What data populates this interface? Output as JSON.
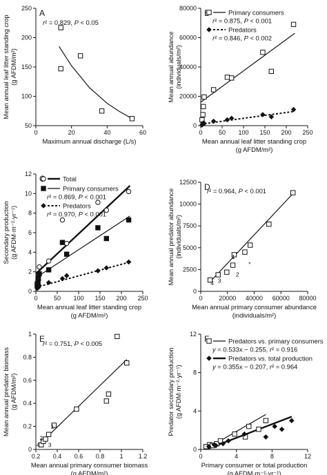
{
  "chart_data": [
    {
      "panel": "A",
      "type": "scatter",
      "xlabel": "Maximum annual discharge (L/s)",
      "ylabel": [
        "Mean annual leaf litter standing crop",
        "(g AFDM/m²)"
      ],
      "xlim": [
        0,
        60
      ],
      "ylim": [
        50,
        250
      ],
      "xticks": [
        0,
        20,
        40,
        60
      ],
      "yticks": [
        50,
        100,
        150,
        200,
        250
      ],
      "annotations": [
        {
          "text": "r² = 0.829, P < 0.05"
        }
      ],
      "series": [
        {
          "marker": "open-square",
          "points": [
            [
              14,
              217
            ],
            [
              14,
              147
            ],
            [
              25,
              169
            ],
            [
              37,
              75
            ],
            [
              54,
              62
            ]
          ],
          "fit": {
            "kind": "curve",
            "points": [
              [
                13,
                185
              ],
              [
                20,
                152
              ],
              [
                30,
                115
              ],
              [
                40,
                88
              ],
              [
                47,
                74
              ],
              [
                54,
                62
              ]
            ]
          }
        }
      ],
      "labels": []
    },
    {
      "panel": "B",
      "type": "scatter",
      "xlabel": "Mean annual leaf litter standing crop",
      "xlabel2": "(g AFDM/m²)",
      "ylabel": [
        "Mean annual abundance",
        "(individuals/m²)"
      ],
      "xlim": [
        0,
        250
      ],
      "ylim": [
        0,
        80000
      ],
      "xticks": [
        0,
        50,
        100,
        150,
        200,
        250
      ],
      "yticks": [
        0,
        20000,
        40000,
        60000,
        80000
      ],
      "legend": [
        {
          "marker": "open-square",
          "line": "solid",
          "label": "Primary consumers",
          "stat": "r² = 0.875, P < 0.001"
        },
        {
          "marker": "filled-diamond",
          "line": "dotted",
          "label": "Predators",
          "stat": "r² = 0.846, P < 0.002"
        }
      ],
      "annotations": [],
      "series": [
        {
          "marker": "open-square",
          "points": [
            [
              3,
              4000
            ],
            [
              5,
              7500
            ],
            [
              6,
              13000
            ],
            [
              8,
              19500
            ],
            [
              30,
              24500
            ],
            [
              62,
              33000
            ],
            [
              72,
              32500
            ],
            [
              145,
              50000
            ],
            [
              165,
              37000
            ],
            [
              217,
              69000
            ]
          ],
          "fit": {
            "kind": "line",
            "line": "solid",
            "points": [
              [
                0,
                16000
              ],
              [
                220,
                63000
              ]
            ]
          }
        },
        {
          "marker": "filled-diamond",
          "points": [
            [
              3,
              500
            ],
            [
              5,
              1200
            ],
            [
              6,
              1800
            ],
            [
              8,
              1500
            ],
            [
              30,
              3000
            ],
            [
              62,
              4000
            ],
            [
              72,
              5000
            ],
            [
              145,
              7500
            ],
            [
              165,
              6000
            ],
            [
              217,
              11000
            ]
          ],
          "fit": {
            "kind": "line",
            "line": "dotted",
            "points": [
              [
                0,
                1000
              ],
              [
                220,
                9800
              ]
            ]
          }
        }
      ],
      "labels": []
    },
    {
      "panel": "C",
      "type": "scatter",
      "xlabel": "Mean annual leaf litter standing crop",
      "xlabel2": "(g AFDM/m²)",
      "ylabel": [
        "Secondary production",
        "(g AFDM·m⁻²·yr⁻¹)"
      ],
      "xlim": [
        0,
        250
      ],
      "ylim": [
        0,
        12
      ],
      "xticks": [
        0,
        50,
        100,
        150,
        200,
        250
      ],
      "yticks": [
        0,
        2,
        4,
        6,
        8,
        10,
        12
      ],
      "legend": [
        {
          "marker": "open-circle",
          "line": "thick",
          "label": "Total",
          "stat": ""
        },
        {
          "marker": "filled-square",
          "line": "solid",
          "label": "Primary consumers",
          "stat": "r² = 0.869, P < 0.001"
        },
        {
          "marker": "filled-diamond",
          "line": "dotted",
          "label": "Predators",
          "stat": "r² = 0.970, P < 0.001"
        }
      ],
      "annotations": [],
      "series": [
        {
          "marker": "open-circle",
          "points": [
            [
              3,
              0.9
            ],
            [
              5,
              1.5
            ],
            [
              6,
              1.7
            ],
            [
              8,
              2.5
            ],
            [
              30,
              3.1
            ],
            [
              62,
              7.3
            ],
            [
              72,
              4.9
            ],
            [
              145,
              9.1
            ],
            [
              165,
              8.3
            ],
            [
              217,
              10.2
            ]
          ],
          "fit": {
            "kind": "line",
            "line": "thick",
            "points": [
              [
                0,
                1.8
              ],
              [
                220,
                10.8
              ]
            ]
          }
        },
        {
          "marker": "filled-square",
          "points": [
            [
              3,
              0.6
            ],
            [
              5,
              1.0
            ],
            [
              6,
              1.3
            ],
            [
              8,
              1.8
            ],
            [
              30,
              2.2
            ],
            [
              62,
              5.0
            ],
            [
              72,
              3.8
            ],
            [
              145,
              6.5
            ],
            [
              165,
              5.4
            ],
            [
              217,
              7.3
            ]
          ],
          "fit": {
            "kind": "line",
            "line": "solid",
            "points": [
              [
                0,
                1.4
              ],
              [
                220,
                7.7
              ]
            ]
          }
        },
        {
          "marker": "filled-diamond",
          "points": [
            [
              3,
              0.3
            ],
            [
              5,
              0.5
            ],
            [
              6,
              0.4
            ],
            [
              8,
              0.6
            ],
            [
              30,
              0.9
            ],
            [
              62,
              1.3
            ],
            [
              72,
              1.6
            ],
            [
              145,
              2.1
            ],
            [
              165,
              2.4
            ],
            [
              217,
              3.0
            ]
          ],
          "fit": {
            "kind": "line",
            "line": "dotted",
            "points": [
              [
                0,
                0.4
              ],
              [
                220,
                3.0
              ]
            ]
          }
        }
      ],
      "labels": []
    },
    {
      "panel": "D",
      "type": "scatter",
      "xlabel": "Mean annual primary consumer abundance",
      "xlabel2": "(individuals/m²)",
      "ylabel": [
        "Mean annual predator abundance",
        "(individuals/m²)"
      ],
      "xlim": [
        0,
        80000
      ],
      "ylim": [
        0,
        12500
      ],
      "xticks": [
        0,
        20000,
        40000,
        60000,
        80000
      ],
      "yticks": [
        0,
        2500,
        5000,
        7500,
        10000,
        12500
      ],
      "annotations": [
        {
          "text": "r² = 0.964, P < 0.001"
        }
      ],
      "series": [
        {
          "marker": "open-square",
          "points": [
            [
              7000,
              1300
            ],
            [
              13000,
              1900
            ],
            [
              19500,
              2200
            ],
            [
              24000,
              3000
            ],
            [
              25000,
              4200
            ],
            [
              33000,
              4500
            ],
            [
              37000,
              5300
            ],
            [
              51000,
              7700
            ],
            [
              69000,
              11300
            ]
          ],
          "fit": {
            "kind": "line",
            "line": "solid",
            "points": [
              [
                7000,
                1100
              ],
              [
                69000,
                11200
              ]
            ]
          }
        }
      ],
      "labels": [
        {
          "text": "1",
          "x": 24500,
          "y": 3700
        },
        {
          "text": "2",
          "x": 27500,
          "y": 1700
        },
        {
          "text": "3",
          "x": 14000,
          "y": 1000
        },
        {
          "text": "4",
          "x": 8500,
          "y": 700
        },
        {
          "text": "*",
          "x": 36500,
          "y": 2900
        }
      ]
    },
    {
      "panel": "E",
      "type": "scatter",
      "xlabel": "Mean annual primary consumer biomass",
      "xlabel2": "(g AFDM/m²)",
      "ylabel": [
        "Mean annual predator biomass",
        "(g AFDM/m²)"
      ],
      "xlim": [
        0.2,
        1.2
      ],
      "ylim": [
        0,
        1.0
      ],
      "xticks": [
        0.2,
        0.4,
        0.6,
        0.8,
        1.0,
        1.2
      ],
      "yticks": [
        0,
        0.2,
        0.4,
        0.6,
        0.8,
        1.0
      ],
      "annotations": [
        {
          "text": "r² = 0.751, P < 0.005"
        }
      ],
      "series": [
        {
          "marker": "open-square",
          "points": [
            [
              0.25,
              0.04
            ],
            [
              0.27,
              0.07
            ],
            [
              0.29,
              0.09
            ],
            [
              0.32,
              0.13
            ],
            [
              0.37,
              0.21
            ],
            [
              0.58,
              0.35
            ],
            [
              0.86,
              0.42
            ],
            [
              0.88,
              0.48
            ],
            [
              0.96,
              0.98
            ],
            [
              1.05,
              0.75
            ]
          ],
          "fit": {
            "kind": "line",
            "line": "solid",
            "points": [
              [
                0.25,
                0.06
              ],
              [
                1.05,
                0.78
              ]
            ]
          }
        }
      ],
      "labels": [
        {
          "text": "1",
          "x": 0.355,
          "y": 0.18
        },
        {
          "text": "2",
          "x": 0.25,
          "y": 0.08
        },
        {
          "text": "3",
          "x": 0.33,
          "y": 0.02
        },
        {
          "text": "4",
          "x": 0.22,
          "y": 0.02
        }
      ]
    },
    {
      "panel": "F",
      "type": "scatter",
      "xlabel": "Primary consumer or total production",
      "xlabel2": "(g AFDM·m⁻²·yr⁻¹)",
      "ylabel": [
        "Predator secondary production",
        "(g AFDM·m⁻²·yr⁻¹)"
      ],
      "xlim": [
        0,
        12
      ],
      "ylim": [
        0,
        12
      ],
      "xticks": [
        0,
        4,
        8,
        12
      ],
      "yticks": [
        0,
        4,
        8,
        12
      ],
      "legend": [
        {
          "marker": "open-square",
          "line": "solid",
          "label": "Predators vs. primary consumers",
          "stat": "y = 0.533x − 0.255, r² = 0.916"
        },
        {
          "marker": "filled-diamond",
          "line": "thick",
          "label": "Predators vs. total production",
          "stat": "y = 0.355x − 0.207, r² = 0.964"
        }
      ],
      "annotations": [],
      "series": [
        {
          "marker": "open-square",
          "points": [
            [
              0.6,
              0.3
            ],
            [
              1.0,
              0.5
            ],
            [
              1.3,
              0.4
            ],
            [
              1.8,
              0.6
            ],
            [
              2.2,
              0.9
            ],
            [
              3.8,
              1.6
            ],
            [
              5.0,
              1.3
            ],
            [
              5.4,
              2.4
            ],
            [
              6.5,
              2.1
            ],
            [
              7.3,
              3.0
            ]
          ],
          "fit": {
            "kind": "line",
            "line": "solid",
            "points": [
              [
                0.6,
                0.06
              ],
              [
                7.3,
                3.64
              ]
            ]
          }
        },
        {
          "marker": "filled-diamond",
          "points": [
            [
              0.9,
              0.3
            ],
            [
              1.5,
              0.5
            ],
            [
              1.7,
              0.4
            ],
            [
              2.5,
              0.6
            ],
            [
              3.1,
              0.9
            ],
            [
              4.9,
              1.6
            ],
            [
              7.3,
              1.3
            ],
            [
              8.3,
              2.4
            ],
            [
              9.1,
              2.1
            ],
            [
              10.2,
              3.0
            ]
          ],
          "fit": {
            "kind": "line",
            "line": "thick",
            "points": [
              [
                0.9,
                0.11
              ],
              [
                10.2,
                3.41
              ]
            ]
          }
        }
      ],
      "labels": []
    }
  ]
}
